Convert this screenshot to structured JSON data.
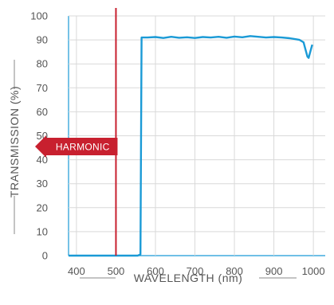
{
  "chart_data": {
    "type": "line",
    "xlabel": "WAVELENGTH (nm)",
    "ylabel": "TRANSMISSION (%)",
    "xlim": [
      380,
      1030
    ],
    "ylim": [
      0,
      100
    ],
    "x_ticks": [
      400,
      500,
      600,
      700,
      800,
      900,
      1000
    ],
    "y_ticks": [
      0,
      10,
      20,
      30,
      40,
      50,
      60,
      70,
      80,
      90,
      100
    ],
    "grid": true,
    "colors": {
      "series": "#1a9ad6",
      "marker": "#c8202f",
      "grid": "#d9d9d9",
      "frame": "#1a9ad6"
    },
    "series": [
      {
        "x": [
          380,
          520,
          555,
          562,
          565,
          580,
          600,
          620,
          640,
          660,
          680,
          700,
          720,
          740,
          760,
          780,
          800,
          820,
          840,
          860,
          880,
          900,
          920,
          940,
          955,
          965,
          975,
          980,
          985,
          988,
          992,
          997
        ],
        "values": [
          0,
          0,
          0,
          0.5,
          91,
          91,
          91.2,
          90.8,
          91.3,
          90.9,
          91.1,
          90.8,
          91.2,
          91,
          91.3,
          90.9,
          91.4,
          91.1,
          91.6,
          91.3,
          91,
          91.2,
          91,
          90.7,
          90.3,
          90,
          89,
          86,
          83,
          82.5,
          85,
          88
        ]
      }
    ],
    "marker_line": {
      "x": 500,
      "label": "HARMONIC"
    }
  }
}
